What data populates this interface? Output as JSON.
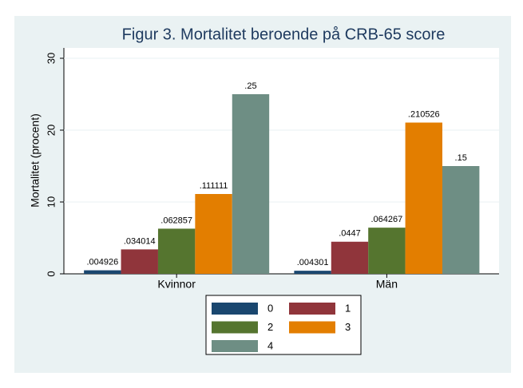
{
  "chart_data": {
    "type": "bar",
    "title": "Figur 3. Mortalitet beroende på CRB-65 score",
    "y_label": "Mortalitet (procent)",
    "categories": [
      "Kvinnor",
      "Män"
    ],
    "series": [
      {
        "name": "0",
        "color": "#1a476f",
        "values": [
          0.4926,
          0.4301
        ],
        "value_labels": [
          ".004926",
          ".004301"
        ]
      },
      {
        "name": "1",
        "color": "#90353b",
        "values": [
          3.4014,
          4.47
        ],
        "value_labels": [
          ".034014",
          ".0447"
        ]
      },
      {
        "name": "2",
        "color": "#55752f",
        "values": [
          6.2857,
          6.4267
        ],
        "value_labels": [
          ".062857",
          ".064267"
        ]
      },
      {
        "name": "3",
        "color": "#e37e00",
        "values": [
          11.1111,
          21.0526
        ],
        "value_labels": [
          ".111111",
          ".210526"
        ]
      },
      {
        "name": "4",
        "color": "#6e8e84",
        "values": [
          25,
          15
        ],
        "value_labels": [
          ".25",
          ".15"
        ]
      }
    ],
    "ylim": [
      0,
      30
    ],
    "yticks": [
      0,
      10,
      20,
      30
    ],
    "grid": true,
    "legend": "bottom"
  }
}
